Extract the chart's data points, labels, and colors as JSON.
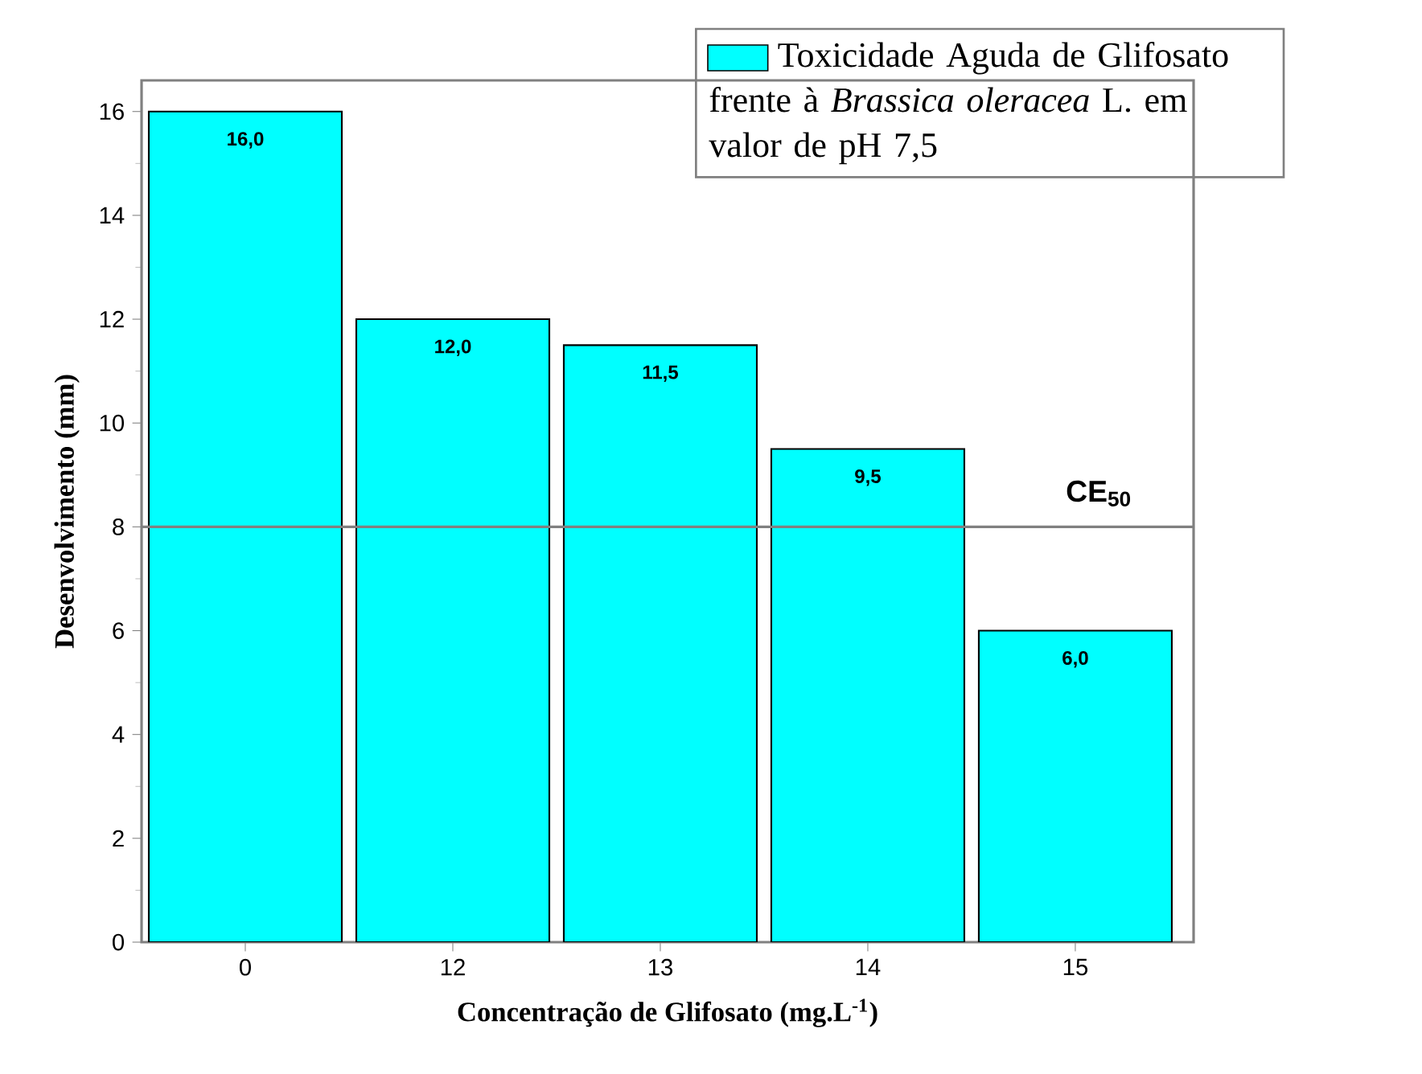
{
  "chart_data": {
    "type": "bar",
    "xlabel": "Concentração de Glifosato (mg.L$^{-1}$)",
    "ylabel": "Desenvolvimento (mm)",
    "categories": [
      "0",
      "12",
      "13",
      "14",
      "15"
    ],
    "series": [
      {
        "name": "Toxicidade Aguda de Glifosato frente à *Brassica oleracea* L. em valor de pH 7,5",
        "color": "#00ffff",
        "values": [
          16.0,
          12.0,
          11.5,
          9.5,
          6.0
        ],
        "value_labels": [
          "16,0",
          "12,0",
          "11,5",
          "9,5",
          "6,0"
        ]
      }
    ],
    "ylim": [
      0,
      16.6
    ],
    "yticks": [
      0,
      2,
      4,
      6,
      8,
      10,
      12,
      14,
      16
    ],
    "grid": false,
    "legend": "top right",
    "ref_lines": [
      {
        "axis": "y",
        "value": 8,
        "label": "CE$_{50}$",
        "color": "#808080"
      }
    ]
  }
}
